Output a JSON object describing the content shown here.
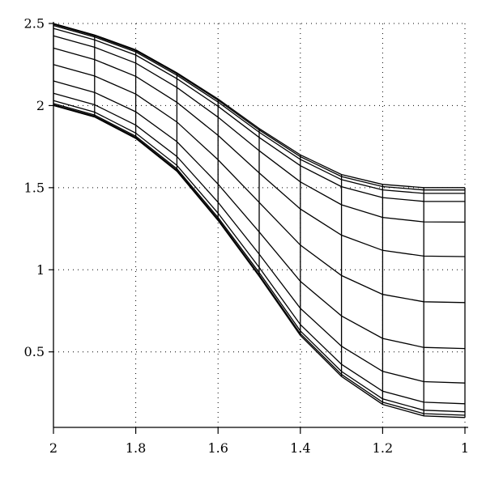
{
  "chart_data": {
    "type": "line",
    "title": "",
    "xlabel": "",
    "ylabel": "",
    "xlim": [
      2,
      1
    ],
    "ylim": [
      0.04,
      2.5
    ],
    "x_reversed": true,
    "grid": true,
    "grid_style": "dotted",
    "x_ticks": [
      2,
      1.8,
      1.6,
      1.4,
      1.2,
      1
    ],
    "x_tick_labels": [
      "2",
      "1.8",
      "1.6",
      "1.4",
      "1.2",
      "1"
    ],
    "y_ticks": [
      0.5,
      1,
      1.5,
      2,
      2.5
    ],
    "y_tick_labels": [
      "0.5",
      "1",
      "1.5",
      "2",
      "2.5"
    ],
    "x": [
      2.0,
      1.9,
      1.8,
      1.7,
      1.6,
      1.5,
      1.4,
      1.3,
      1.2,
      1.1,
      1.0
    ],
    "lower_boundary": [
      2.0,
      1.93,
      1.8,
      1.6,
      1.3,
      0.96,
      0.6,
      0.35,
      0.18,
      0.11,
      0.1
    ],
    "upper_boundary": [
      2.5,
      2.43,
      2.34,
      2.2,
      2.04,
      1.86,
      1.7,
      1.58,
      1.52,
      1.5,
      1.5
    ],
    "fractions": [
      0,
      0.01,
      0.025,
      0.06,
      0.15,
      0.3,
      0.5,
      0.7,
      0.85,
      0.94,
      0.975,
      0.99,
      1
    ],
    "series_color": "#000000"
  }
}
